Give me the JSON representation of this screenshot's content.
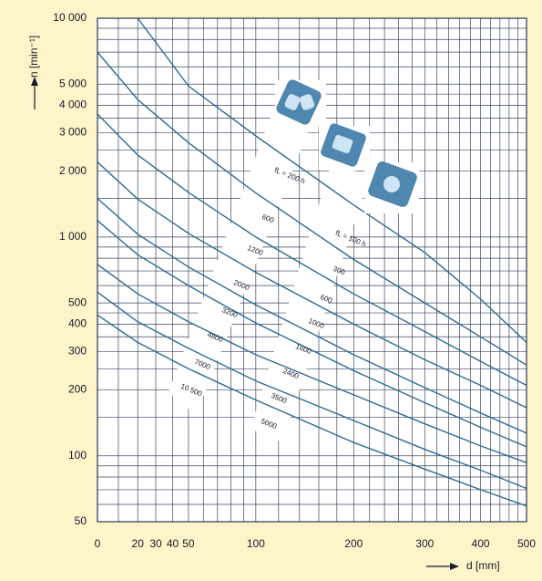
{
  "chart_data": {
    "type": "line",
    "y_label": "n [min⁻¹]",
    "x_label": "d [mm]",
    "x": [
      0,
      20,
      50,
      100,
      200,
      300,
      400,
      500
    ],
    "color": "#2f6a93",
    "series": [
      {
        "values": [
          null,
          10000,
          4900,
          2900,
          1400,
          850,
          520,
          330
        ]
      },
      {
        "values": [
          7000,
          4250,
          2700,
          1590,
          790,
          500,
          350,
          260
        ]
      },
      {
        "values": [
          3650,
          2370,
          1600,
          1000,
          550,
          370,
          270,
          210
        ]
      },
      {
        "values": [
          2200,
          1490,
          1040,
          690,
          400,
          275,
          210,
          166
        ]
      },
      {
        "values": [
          1500,
          1030,
          730,
          490,
          290,
          205,
          157,
          127
        ]
      },
      {
        "values": [
          1190,
          830,
          600,
          405,
          245,
          175,
          135,
          110
        ]
      },
      {
        "values": [
          750,
          550,
          410,
          290,
          190,
          140,
          111,
          93
        ]
      },
      {
        "values": [
          560,
          410,
          310,
          220,
          145,
          107,
          86,
          71
        ]
      },
      {
        "values": [
          440,
          330,
          250,
          180,
          115,
          87,
          70,
          59
        ]
      }
    ],
    "xlim": [
      0,
      500
    ],
    "ylim": [
      50,
      10000
    ],
    "log_y": true,
    "grid": true,
    "xticks": [
      0,
      20,
      30,
      40,
      50,
      100,
      200,
      300,
      400,
      500
    ],
    "yticks": [
      {
        "value": 10000,
        "label": "10 000"
      },
      {
        "value": 5000,
        "label": "5 000"
      },
      {
        "value": 4000,
        "label": "4 000"
      },
      {
        "value": 3000,
        "label": "3 000"
      },
      {
        "value": 2000,
        "label": "2 000"
      },
      {
        "value": 1000,
        "label": "1 000"
      },
      500,
      400,
      300,
      200,
      100,
      50
    ],
    "x_minor_grid": [
      10,
      60,
      70,
      80,
      90,
      120,
      140,
      160,
      180,
      220,
      240,
      260,
      280,
      320,
      340,
      360,
      380,
      420,
      440,
      460,
      480
    ],
    "y_minor_grid": [
      60,
      70,
      80,
      90,
      150,
      250,
      350,
      450,
      600,
      700,
      800,
      900,
      1500,
      2500,
      3500,
      4500,
      6000,
      7000,
      8000,
      9000
    ],
    "band_labels": [
      [
        "fL = 200 h",
        "600",
        "1200",
        "2000",
        "3200",
        "4800",
        "7000",
        "10 500"
      ],
      [
        "fL = 100 h",
        "300",
        "600",
        "1000",
        "1600",
        "2400",
        "3500",
        "5000"
      ]
    ]
  }
}
